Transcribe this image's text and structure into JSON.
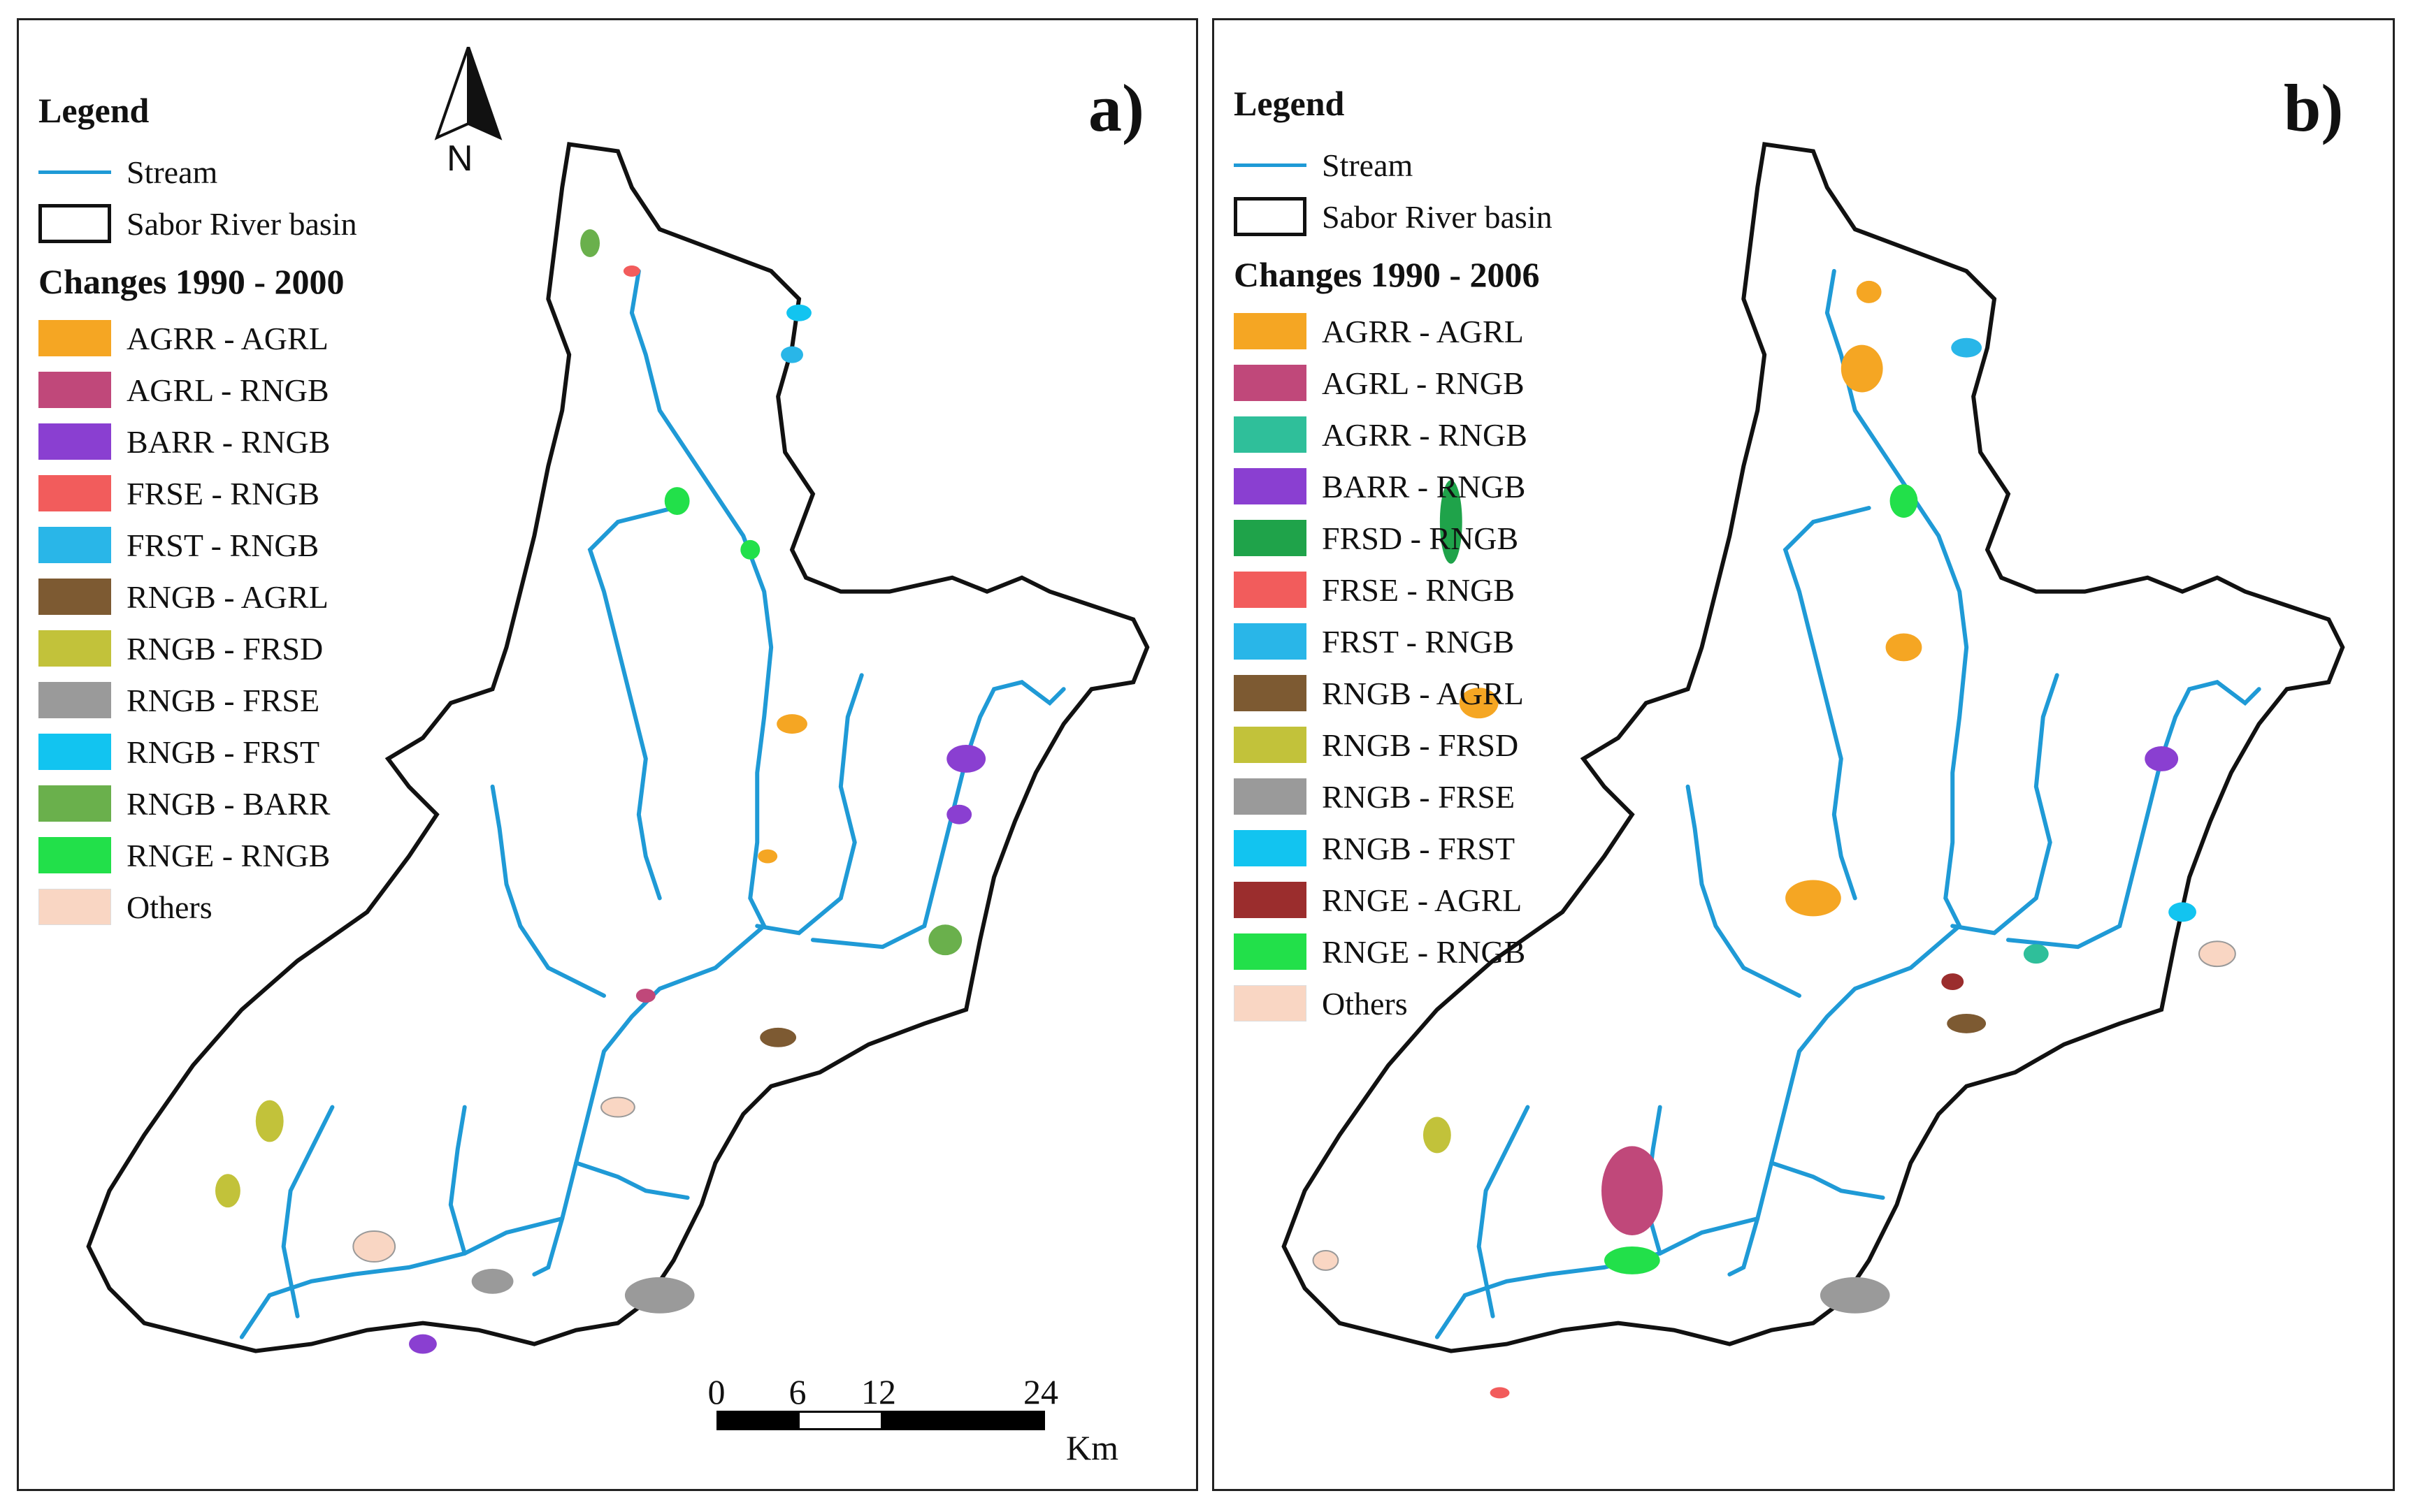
{
  "colors": {
    "stream": "#1f9ad6",
    "basin_outline": "#111111",
    "AGRR_AGRL": "#f5a623",
    "AGRL_RNGB": "#c0487a",
    "AGRR_RNGB": "#2fbf9a",
    "BARR_RNGB": "#8a3fd1",
    "FRSD_RNGB": "#1fa34a",
    "FRSE_RNGB": "#f25c5c",
    "FRST_RNGB": "#29b6e8",
    "RNGB_AGRL": "#7d5a32",
    "RNGB_FRSD": "#c2c23a",
    "RNGB_FRSE": "#9a9a9a",
    "RNGB_FRST": "#12c4f0",
    "RNGB_BARR": "#6ab04c",
    "RNGE_AGRL": "#9b2d2d",
    "RNGE_RNGB": "#22e04a",
    "Others": "#f9d6c3"
  },
  "panel_a": {
    "label": "a)",
    "legend_title": "Legend",
    "stream_label": "Stream",
    "basin_label": "Sabor River basin",
    "changes_title": "Changes 1990 - 2000",
    "items": [
      {
        "label": "AGRR - AGRL",
        "color": "#f5a623"
      },
      {
        "label": "AGRL - RNGB",
        "color": "#c0487a"
      },
      {
        "label": "BARR - RNGB",
        "color": "#8a3fd1"
      },
      {
        "label": "FRSE - RNGB",
        "color": "#f25c5c"
      },
      {
        "label": "FRST - RNGB",
        "color": "#29b6e8"
      },
      {
        "label": "RNGB - AGRL",
        "color": "#7d5a32"
      },
      {
        "label": "RNGB - FRSD",
        "color": "#c2c23a"
      },
      {
        "label": "RNGB - FRSE",
        "color": "#9a9a9a"
      },
      {
        "label": "RNGB - FRST",
        "color": "#12c4f0"
      },
      {
        "label": "RNGB - BARR",
        "color": "#6ab04c"
      },
      {
        "label": "RNGE - RNGB",
        "color": "#22e04a"
      },
      {
        "label": "Others",
        "color": "#f9d6c3"
      }
    ],
    "north_label": "N",
    "scale": {
      "ticks": [
        "0",
        "6",
        "12",
        "24"
      ],
      "unit": "Km"
    }
  },
  "panel_b": {
    "label": "b)",
    "legend_title": "Legend",
    "stream_label": "Stream",
    "basin_label": "Sabor River basin",
    "changes_title": "Changes 1990 - 2006",
    "items": [
      {
        "label": "AGRR - AGRL",
        "color": "#f5a623"
      },
      {
        "label": "AGRL - RNGB",
        "color": "#c0487a"
      },
      {
        "label": "AGRR - RNGB",
        "color": "#2fbf9a"
      },
      {
        "label": "BARR - RNGB",
        "color": "#8a3fd1"
      },
      {
        "label": "FRSD - RNGB",
        "color": "#1fa34a"
      },
      {
        "label": "FRSE - RNGB",
        "color": "#f25c5c"
      },
      {
        "label": "FRST - RNGB",
        "color": "#29b6e8"
      },
      {
        "label": "RNGB - AGRL",
        "color": "#7d5a32"
      },
      {
        "label": "RNGB - FRSD",
        "color": "#c2c23a"
      },
      {
        "label": "RNGB - FRSE",
        "color": "#9a9a9a"
      },
      {
        "label": "RNGB - FRST",
        "color": "#12c4f0"
      },
      {
        "label": "RNGE - AGRL",
        "color": "#9b2d2d"
      },
      {
        "label": "RNGE - RNGB",
        "color": "#22e04a"
      },
      {
        "label": "Others",
        "color": "#f9d6c3"
      }
    ]
  }
}
